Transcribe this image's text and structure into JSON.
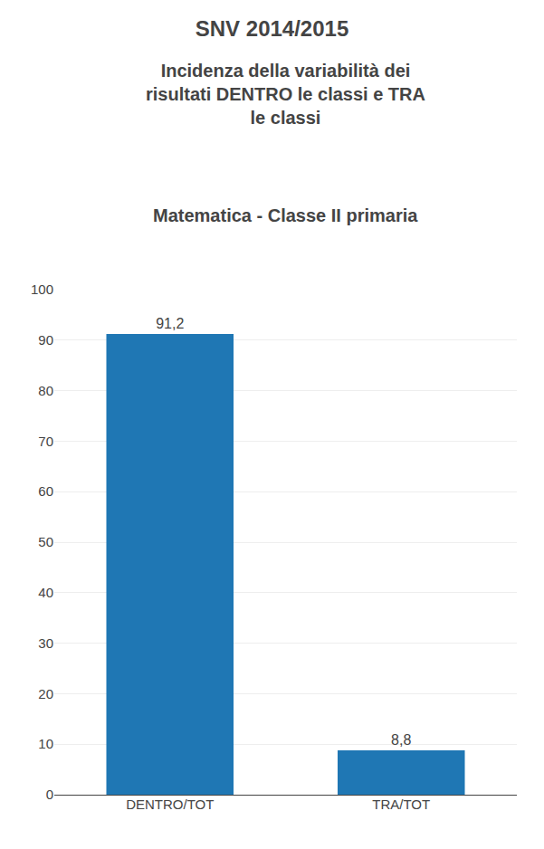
{
  "chart_data": {
    "type": "bar",
    "title": "SNV 2014/2015",
    "subtitle": "Incidenza della variabilità dei\nrisultati DENTRO le classi e TRA\nle classi",
    "annotations": [
      "Matematica - Classe II primaria"
    ],
    "categories": [
      "DENTRO/TOT",
      "TRA/TOT"
    ],
    "values": [
      91.2,
      8.8
    ],
    "data_labels": true,
    "value_labels": [
      "91,2",
      "8,8"
    ],
    "ylim": [
      0,
      100
    ],
    "yticks": [
      0,
      10,
      20,
      30,
      40,
      50,
      60,
      70,
      80,
      90,
      100
    ],
    "grid": true
  }
}
